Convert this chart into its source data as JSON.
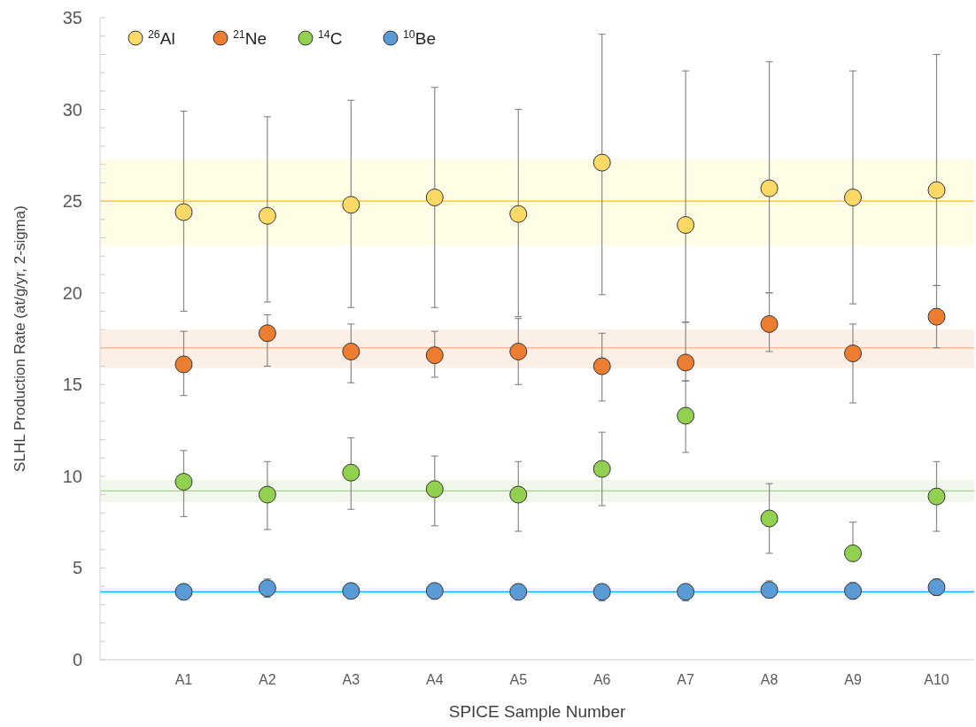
{
  "chart_data": {
    "type": "scatter",
    "xlabel": "SPICE Sample Number",
    "ylabel": "SLHL Production Rate (at/g/yr, 2-sigma)",
    "categories": [
      "A1",
      "A2",
      "A3",
      "A4",
      "A5",
      "A6",
      "A7",
      "A8",
      "A9",
      "A10"
    ],
    "ylim": [
      0,
      35
    ],
    "yticks": [
      0,
      {
        "value": 1,
        "label": null
      },
      {
        "value": 2,
        "label": null
      },
      {
        "value": 3,
        "label": null
      },
      {
        "value": 4,
        "label": null
      },
      5,
      {
        "value": 6,
        "label": null
      },
      {
        "value": 7,
        "label": null
      },
      {
        "value": 8,
        "label": null
      },
      {
        "value": 9,
        "label": null
      },
      10,
      {
        "value": 11,
        "label": null
      },
      {
        "value": 12,
        "label": null
      },
      {
        "value": 13,
        "label": null
      },
      {
        "value": 14,
        "label": null
      },
      15,
      {
        "value": 16,
        "label": null
      },
      {
        "value": 17,
        "label": null
      },
      {
        "value": 18,
        "label": null
      },
      {
        "value": 19,
        "label": null
      },
      20,
      {
        "value": 21,
        "label": null
      },
      {
        "value": 22,
        "label": null
      },
      {
        "value": 23,
        "label": null
      },
      {
        "value": 24,
        "label": null
      },
      25,
      {
        "value": 26,
        "label": null
      },
      {
        "value": 27,
        "label": null
      },
      {
        "value": 28,
        "label": null
      },
      {
        "value": 29,
        "label": null
      },
      30,
      {
        "value": 31,
        "label": null
      },
      {
        "value": 32,
        "label": null
      },
      {
        "value": 33,
        "label": null
      },
      {
        "value": 34,
        "label": null
      },
      35
    ],
    "grid": false,
    "legend": "top left",
    "marker": "circle",
    "series": [
      {
        "name": "$^{26}$Al",
        "color": "#ffd966",
        "values": [
          24.4,
          24.2,
          24.8,
          25.2,
          24.3,
          27.1,
          23.7,
          25.7,
          25.2,
          25.6
        ],
        "errors": [
          [
            19.0,
            29.9
          ],
          [
            19.5,
            29.6
          ],
          [
            19.2,
            30.5
          ],
          [
            19.2,
            31.2
          ],
          [
            18.7,
            30.0
          ],
          [
            19.9,
            34.1
          ],
          [
            18.4,
            32.1
          ],
          [
            20.0,
            32.6
          ],
          [
            19.4,
            32.1
          ],
          [
            20.4,
            33.0
          ]
        ]
      },
      {
        "name": "$^{21}$Ne",
        "color": "#ed7d31",
        "values": [
          16.1,
          17.8,
          16.8,
          16.6,
          16.8,
          16.0,
          16.2,
          18.3,
          16.7,
          18.7
        ],
        "errors": [
          [
            14.4,
            17.9
          ],
          [
            16.0,
            18.8
          ],
          [
            15.1,
            18.3
          ],
          [
            15.4,
            17.9
          ],
          [
            15.0,
            18.6
          ],
          [
            14.1,
            17.8
          ],
          [
            15.2,
            18.4
          ],
          [
            16.8,
            20.0
          ],
          [
            14.0,
            18.3
          ],
          [
            17.0,
            20.4
          ]
        ]
      },
      {
        "name": "$^{14}$C",
        "color": "#92d050",
        "values": [
          9.7,
          9.0,
          10.2,
          9.3,
          9.0,
          10.4,
          13.3,
          7.7,
          5.8,
          8.9
        ],
        "errors": [
          [
            7.8,
            11.4
          ],
          [
            7.1,
            10.8
          ],
          [
            8.2,
            12.1
          ],
          [
            7.3,
            11.1
          ],
          [
            7.0,
            10.8
          ],
          [
            8.4,
            12.4
          ],
          [
            11.3,
            15.2
          ],
          [
            5.8,
            9.6
          ],
          [
            5.8,
            7.5
          ],
          [
            7.0,
            10.8
          ]
        ]
      },
      {
        "name": "$^{10}$Be",
        "color": "#5b9bd5",
        "values": [
          3.7,
          3.9,
          3.75,
          3.75,
          3.7,
          3.7,
          3.7,
          3.8,
          3.75,
          3.95
        ],
        "errors": [
          [
            3.3,
            4.1
          ],
          [
            3.4,
            4.4
          ],
          [
            3.4,
            4.1
          ],
          [
            3.3,
            4.1
          ],
          [
            3.3,
            4.1
          ],
          [
            3.2,
            4.1
          ],
          [
            3.2,
            4.1
          ],
          [
            3.4,
            4.3
          ],
          [
            3.3,
            4.2
          ],
          [
            3.5,
            4.4
          ]
        ]
      }
    ],
    "bands": [
      {
        "axis": "y",
        "from": 22.6,
        "to": 27.3,
        "color": "#fffde5"
      },
      {
        "axis": "y",
        "from": 15.9,
        "to": 18.0,
        "color": "#fcf0e6"
      },
      {
        "axis": "y",
        "from": 8.6,
        "to": 9.8,
        "color": "#f1f8eb"
      },
      {
        "axis": "y",
        "from": 3.5,
        "to": 3.9,
        "color": "#e9f4fb"
      }
    ],
    "ref_lines": [
      {
        "axis": "y",
        "value": 25.0,
        "color": "#ffc000"
      },
      {
        "axis": "y",
        "value": 17.0,
        "color": "#f4b183"
      },
      {
        "axis": "y",
        "value": 9.2,
        "color": "#a9d18e"
      },
      {
        "axis": "y",
        "value": 3.7,
        "color": "#00b0f0"
      }
    ]
  }
}
